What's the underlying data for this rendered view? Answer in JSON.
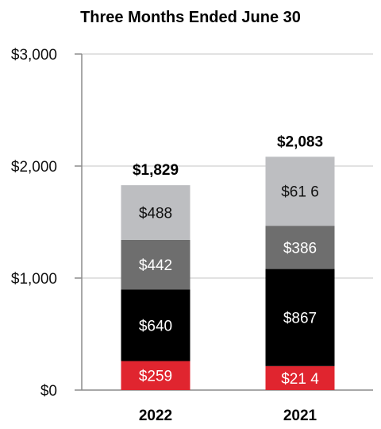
{
  "chart_data": {
    "type": "bar",
    "stacked": true,
    "title": "Three Months Ended June 30",
    "categories": [
      "2022",
      "2021"
    ],
    "series": [
      {
        "color": "#e0252f",
        "label_color": "#ffffff",
        "values": [
          259,
          214
        ],
        "labels": [
          "$259",
          "$21 4"
        ]
      },
      {
        "color": "#000000",
        "label_color": "#ffffff",
        "values": [
          640,
          867
        ],
        "labels": [
          "$640",
          "$867"
        ]
      },
      {
        "color": "#6e6e6e",
        "label_color": "#ffffff",
        "values": [
          442,
          386
        ],
        "labels": [
          "$442",
          "$386"
        ]
      },
      {
        "color": "#bdbec1",
        "label_color": "#111111",
        "values": [
          488,
          616
        ],
        "labels": [
          "$488",
          "$61 6"
        ]
      }
    ],
    "totals": [
      1829,
      2083
    ],
    "total_labels": [
      "$1,829",
      "$2,083"
    ],
    "yticks": [
      0,
      1000,
      2000,
      3000
    ],
    "ytick_labels": [
      "$0",
      "$1,000",
      "$2,000",
      "$3,000"
    ],
    "ylim": [
      0,
      3000
    ],
    "grid": true,
    "legend": "none"
  }
}
